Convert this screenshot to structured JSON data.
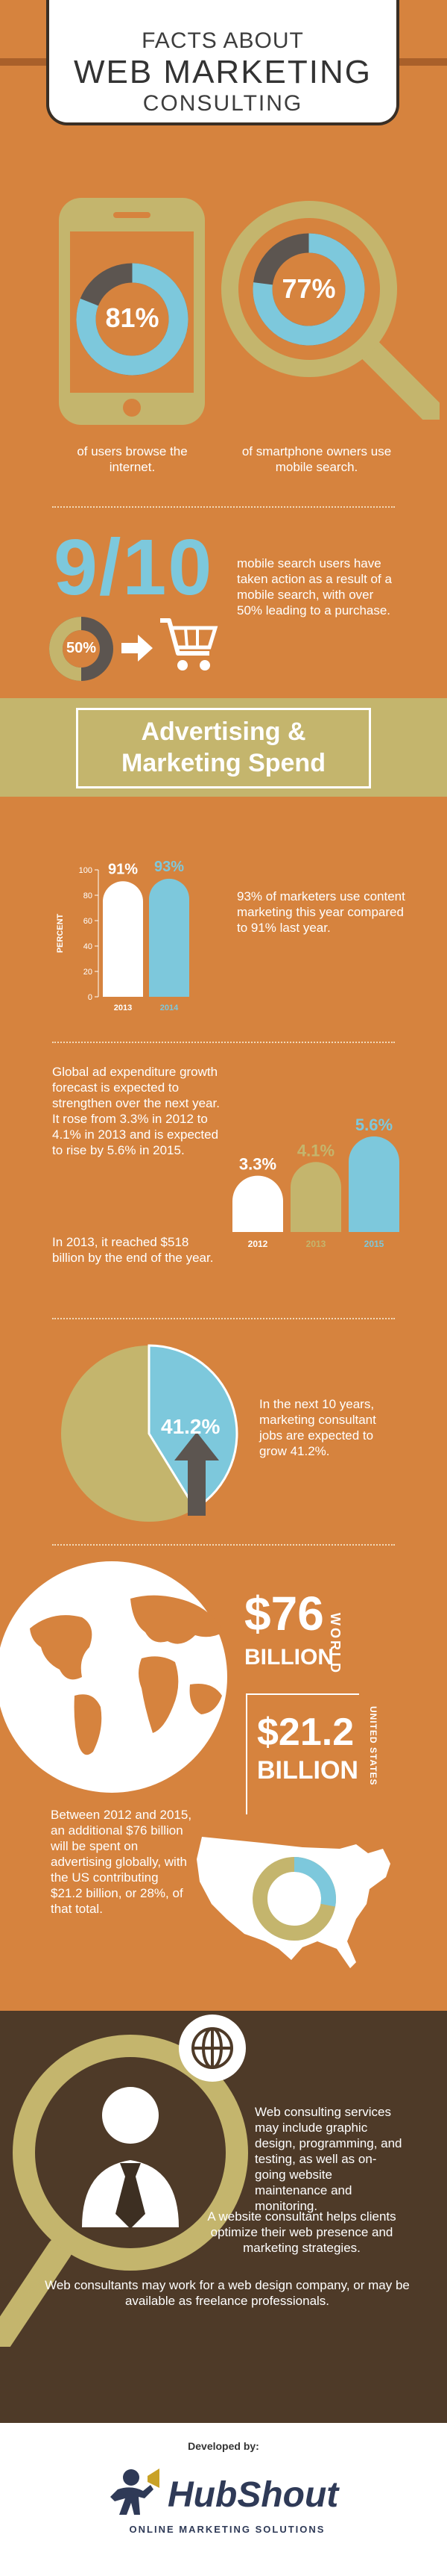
{
  "header": {
    "line1": "FACTS ABOUT",
    "line2": "WEB MARKETING",
    "line3": "CONSULTING"
  },
  "stats_top": {
    "phone_pct": "81%",
    "phone_caption": "of users browse the internet.",
    "search_pct": "77%",
    "search_caption": "of smartphone owners use mobile search.",
    "phone_value": 0.81,
    "search_value": 0.77
  },
  "mobile_search": {
    "fraction": "9/10",
    "badge": "50%",
    "text": "mobile search users have taken action as a result of a mobile search, with over 50% leading to a purchase."
  },
  "banner": {
    "line1": "Advertising &",
    "line2": "Marketing Spend"
  },
  "chart_content": {
    "chart_data": {
      "type": "bar",
      "categories": [
        "2013",
        "2014"
      ],
      "values": [
        91,
        93
      ],
      "value_labels": [
        "91%",
        "93%"
      ],
      "ylabel": "PERCENT",
      "ylim": [
        0,
        100
      ],
      "yticks": [
        "100",
        "80",
        "60",
        "40",
        "20",
        "0"
      ]
    },
    "text": "93% of marketers use content marketing this year compared to 91% last year."
  },
  "ad_growth": {
    "para1": "Global ad expenditure growth forecast is expected to strengthen over the next year. It rose from 3.3% in 2012 to 4.1% in 2013 and is expected to rise by 5.6% in 2015.",
    "para2": "In 2013, it reached $518 billion by the end of the year.",
    "chart_data": {
      "type": "bar",
      "categories": [
        "2012",
        "2013",
        "2015"
      ],
      "values": [
        3.3,
        4.1,
        5.6
      ],
      "value_labels": [
        "3.3%",
        "4.1%",
        "5.6%"
      ]
    }
  },
  "jobs": {
    "pct": "41.2%",
    "value": 0.412,
    "text": "In the next 10 years, marketing consultant jobs are expected to grow 41.2%."
  },
  "spending": {
    "world_amount": "$76",
    "world_unit": "BILLION",
    "world_label": "WORLD",
    "us_amount": "$21.2",
    "us_unit": "BILLION",
    "us_label": "UNITED STATES",
    "us_pct": "28%",
    "us_value": 0.28,
    "text": "Between 2012 and 2015, an additional $76 billion will be spent on advertising globally, with the US contributing $21.2 billion, or 28%, of that total."
  },
  "services": {
    "para1": "Web consulting services may include graphic design, programming, and testing, as well as on-going website maintenance and monitoring.",
    "para2": "A website consultant helps clients optimize their web presence and marketing strategies.",
    "para3": "Web consultants may work for a web design company, or may be available as freelance professionals."
  },
  "footer": {
    "developed_by": "Developed by:",
    "brand_hub": "Hub",
    "brand_shout": "Shout",
    "tagline": "ONLINE MARKETING SOLUTIONS"
  },
  "colors": {
    "orange": "#D6833E",
    "olive": "#C4B56D",
    "blue": "#7DC8DC",
    "brown": "#4E3A28",
    "dark": "#5C5550",
    "cream": "#FFFFFF"
  }
}
